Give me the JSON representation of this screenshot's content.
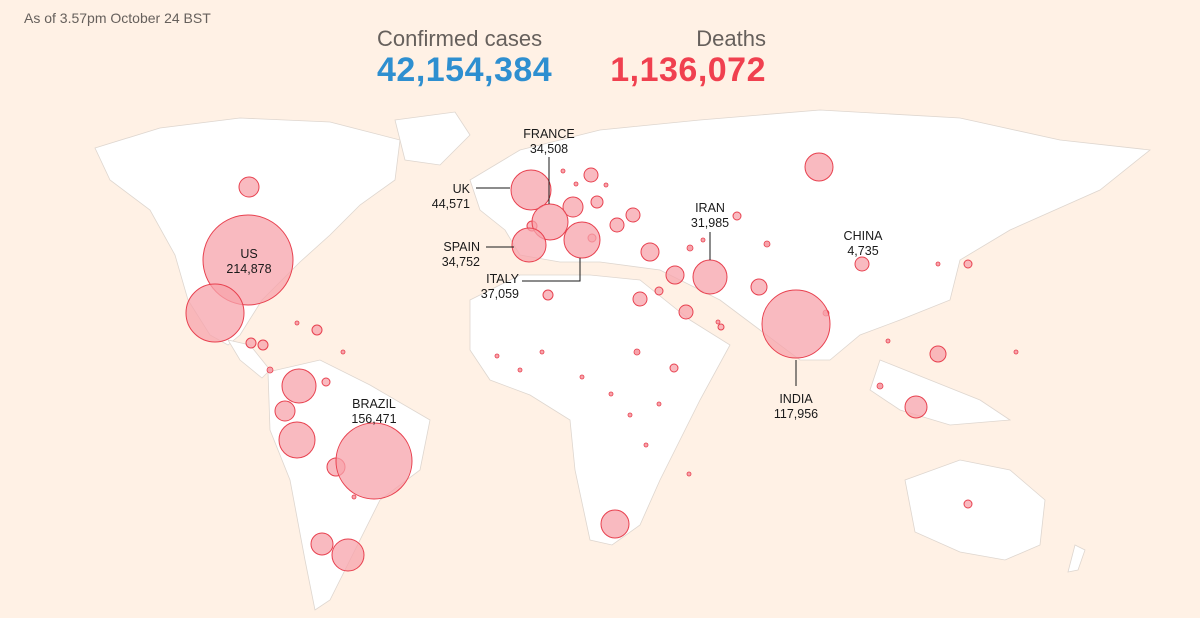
{
  "header": {
    "as_of": "As of 3.57pm October 24 BST",
    "confirmed_label": "Confirmed cases",
    "confirmed_value": "42,154,384",
    "deaths_label": "Deaths",
    "deaths_value": "1,136,072"
  },
  "colors": {
    "confirmed": "#2e8fd0",
    "deaths": "#f0404f",
    "bubble_fill": "#f7a3ab",
    "bubble_stroke": "#e8414f",
    "background": "#fff1e5",
    "land": "#ffffff"
  },
  "labels": {
    "us": {
      "name": "US",
      "value": "214,878"
    },
    "brazil": {
      "name": "BRAZIL",
      "value": "156,471"
    },
    "uk": {
      "name": "UK",
      "value": "44,571"
    },
    "france": {
      "name": "FRANCE",
      "value": "34,508"
    },
    "spain": {
      "name": "SPAIN",
      "value": "34,752"
    },
    "italy": {
      "name": "ITALY",
      "value": "37,059"
    },
    "iran": {
      "name": "IRAN",
      "value": "31,985"
    },
    "china": {
      "name": "CHINA",
      "value": "4,735"
    },
    "india": {
      "name": "INDIA",
      "value": "117,956"
    }
  }
}
